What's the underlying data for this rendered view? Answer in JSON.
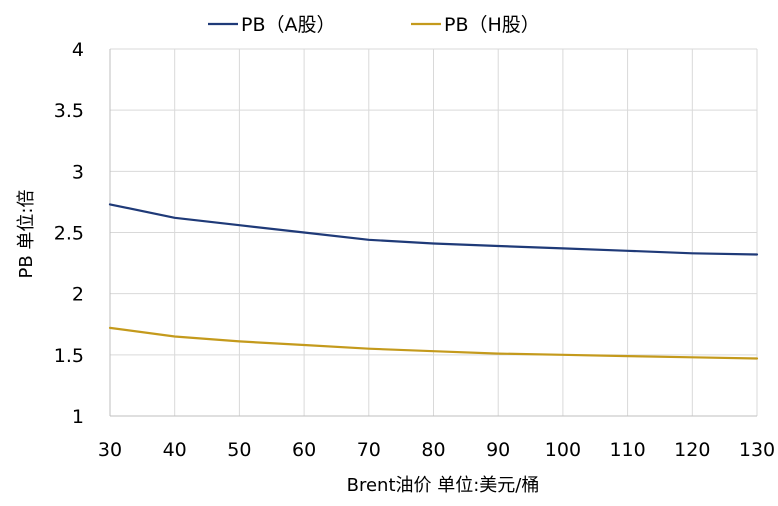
{
  "chart_data": {
    "type": "line",
    "title": "",
    "xlabel": "Brent油价  单位:美元/桶",
    "ylabel": "PB  单位:倍",
    "x": [
      30,
      40,
      50,
      60,
      70,
      80,
      90,
      100,
      110,
      120,
      130
    ],
    "xlim": [
      30,
      130
    ],
    "ylim": [
      1,
      4
    ],
    "x_ticks": [
      "30",
      "40",
      "50",
      "60",
      "70",
      "80",
      "90",
      "100",
      "110",
      "120",
      "130"
    ],
    "y_ticks": [
      "1",
      "1.5",
      "2",
      "2.5",
      "3",
      "3.5",
      "4"
    ],
    "y_tick_values": [
      1,
      1.5,
      2,
      2.5,
      3,
      3.5,
      4
    ],
    "grid": true,
    "legend_position": "top",
    "series": [
      {
        "name": "PB（A股）",
        "color": "#1f3a78",
        "values": [
          2.73,
          2.62,
          2.56,
          2.5,
          2.44,
          2.41,
          2.39,
          2.37,
          2.35,
          2.33,
          2.32
        ]
      },
      {
        "name": "PB（H股）",
        "color": "#c49a1c",
        "values": [
          1.72,
          1.65,
          1.61,
          1.58,
          1.55,
          1.53,
          1.51,
          1.5,
          1.49,
          1.48,
          1.47
        ]
      }
    ]
  }
}
